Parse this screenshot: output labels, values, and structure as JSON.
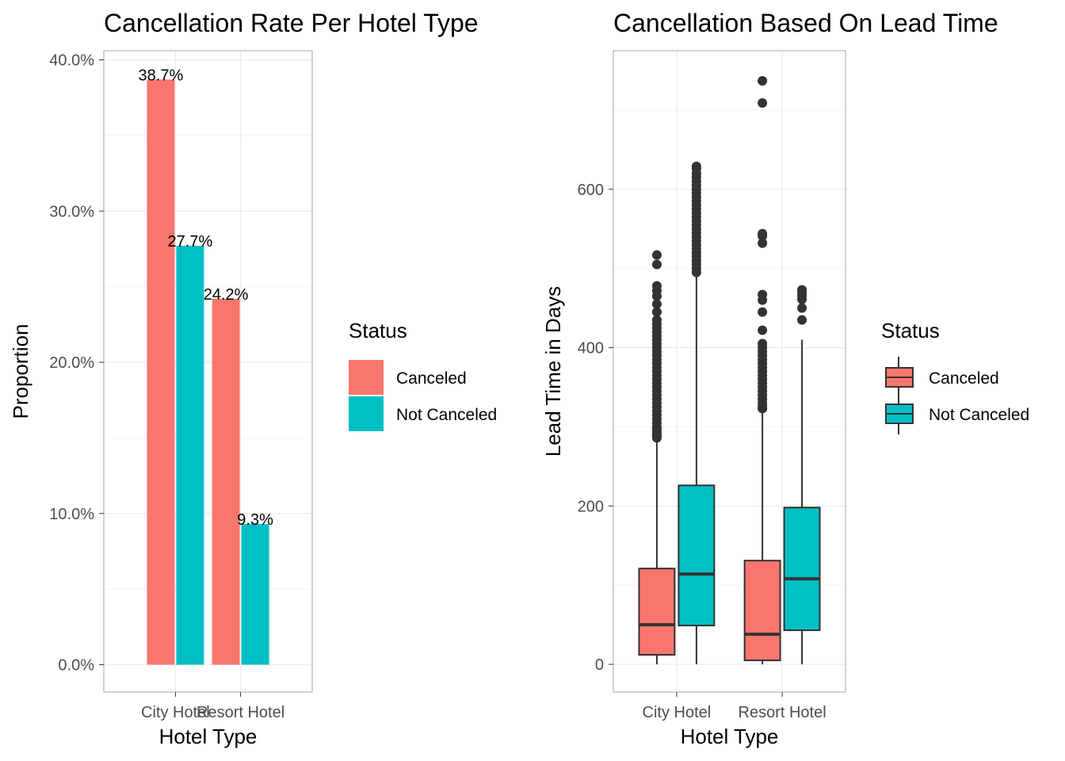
{
  "chart_data": [
    {
      "type": "bar",
      "title": "Cancellation Rate Per Hotel Type",
      "xlabel": "Hotel Type",
      "ylabel": "Proportion",
      "categories": [
        "City Hotel",
        "Resort Hotel"
      ],
      "series": [
        {
          "name": "Canceled",
          "values": [
            38.7,
            24.2
          ],
          "labels": [
            "38.7%",
            "24.2%"
          ],
          "color": "#F8766D"
        },
        {
          "name": "Not Canceled",
          "values": [
            27.7,
            9.3
          ],
          "labels": [
            "27.7%",
            "9.3%"
          ],
          "color": "#00BFC4"
        }
      ],
      "ylim": [
        0,
        40
      ],
      "yticks": [
        0,
        10,
        20,
        30,
        40
      ],
      "yticklabels": [
        "0.0%",
        "10.0%",
        "20.0%",
        "30.0%",
        "40.0%"
      ],
      "legend_title": "Status",
      "legend_position": "right",
      "grid": true
    },
    {
      "type": "box",
      "title": "Cancellation Based On Lead Time",
      "xlabel": "Hotel Type",
      "ylabel": "Lead Time in Days",
      "categories": [
        "City Hotel",
        "Resort Hotel"
      ],
      "series": [
        {
          "name": "Canceled",
          "color": "#F8766D",
          "boxes": [
            {
              "min": 0,
              "q1": 12,
              "median": 50,
              "q3": 121,
              "max": 284,
              "outliers": [
                286,
                288,
                290,
                292,
                295,
                298,
                300,
                305,
                310,
                315,
                320,
                325,
                330,
                335,
                340,
                345,
                350,
                355,
                360,
                365,
                370,
                375,
                380,
                385,
                390,
                395,
                400,
                405,
                410,
                415,
                420,
                425,
                430,
                435,
                445,
                455,
                465,
                472,
                478,
                505,
                517
              ]
            },
            {
              "min": 0,
              "q1": 5,
              "median": 38,
              "q3": 131,
              "max": 320,
              "outliers": [
                323,
                326,
                330,
                335,
                340,
                345,
                350,
                355,
                360,
                365,
                370,
                375,
                380,
                385,
                390,
                395,
                400,
                405,
                422,
                445,
                460,
                467,
                532,
                541,
                544,
                709,
                737
              ]
            }
          ]
        },
        {
          "name": "Not Canceled",
          "color": "#00BFC4",
          "boxes": [
            {
              "min": 0,
              "q1": 49,
              "median": 114,
              "q3": 226,
              "max": 493,
              "outliers": [
                495,
                500,
                505,
                510,
                515,
                520,
                525,
                530,
                535,
                540,
                545,
                550,
                555,
                560,
                565,
                570,
                575,
                580,
                585,
                590,
                595,
                600,
                605,
                610,
                615,
                620,
                626,
                629
              ]
            },
            {
              "min": 0,
              "q1": 43,
              "median": 108,
              "q3": 198,
              "max": 410,
              "outliers": [
                435,
                450,
                461,
                466,
                470,
                473
              ]
            }
          ]
        }
      ],
      "ylim": [
        -35,
        775
      ],
      "yticks": [
        0,
        200,
        400,
        600
      ],
      "yticklabels": [
        "0",
        "200",
        "400",
        "600"
      ],
      "legend_title": "Status",
      "legend_position": "right",
      "grid": true
    }
  ]
}
